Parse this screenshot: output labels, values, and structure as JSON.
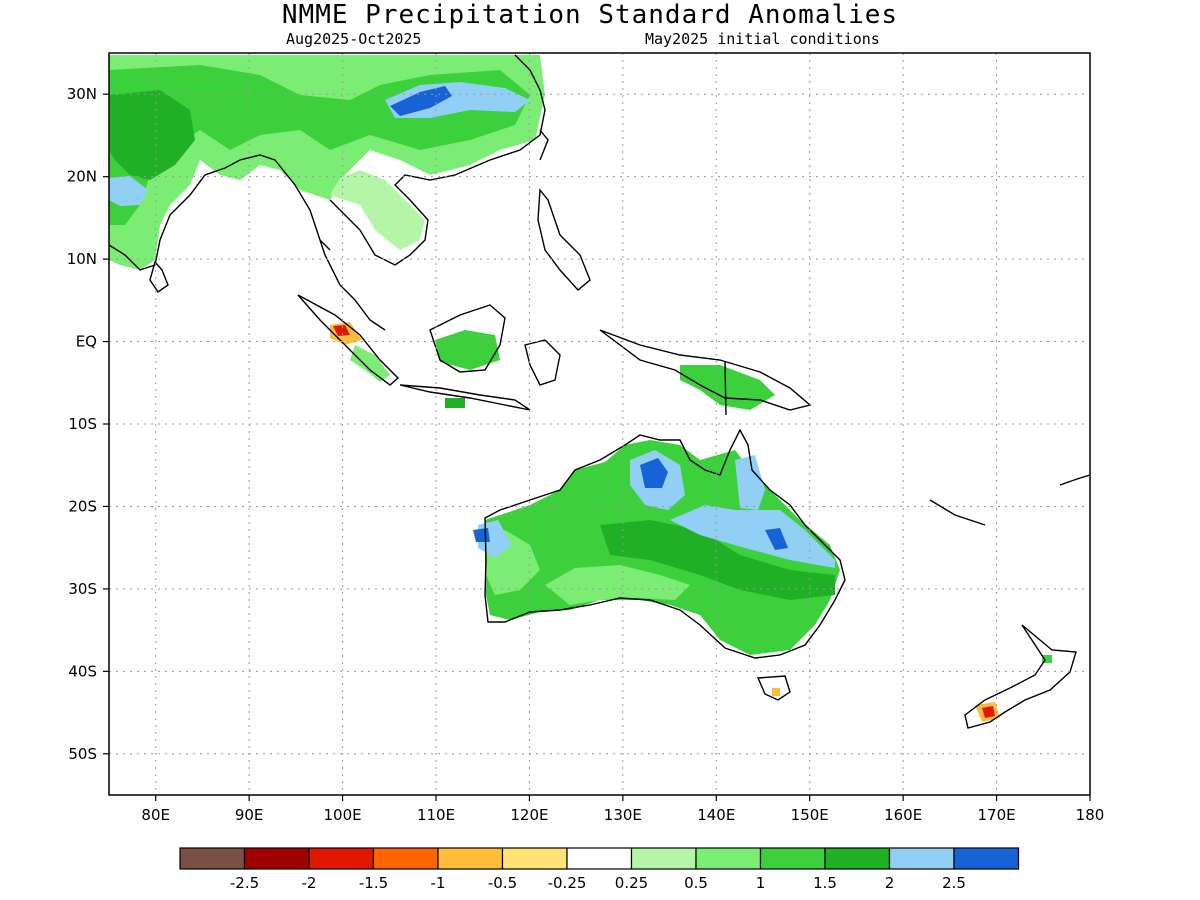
{
  "header": {
    "title": "NMME Precipitation Standard Anomalies",
    "period": "Aug2025-Oct2025",
    "init": "May2025 initial conditions"
  },
  "map": {
    "lon_range": [
      75,
      180
    ],
    "lat_range": [
      -55,
      35
    ],
    "lat_ticks": [
      {
        "lat": 30,
        "label": "30N"
      },
      {
        "lat": 20,
        "label": "20N"
      },
      {
        "lat": 10,
        "label": "10N"
      },
      {
        "lat": 0,
        "label": "EQ"
      },
      {
        "lat": -10,
        "label": "10S"
      },
      {
        "lat": -20,
        "label": "20S"
      },
      {
        "lat": -30,
        "label": "30S"
      },
      {
        "lat": -40,
        "label": "40S"
      },
      {
        "lat": -50,
        "label": "50S"
      }
    ],
    "lon_ticks": [
      {
        "lon": 80,
        "label": "80E"
      },
      {
        "lon": 90,
        "label": "90E"
      },
      {
        "lon": 100,
        "label": "100E"
      },
      {
        "lon": 110,
        "label": "110E"
      },
      {
        "lon": 120,
        "label": "120E"
      },
      {
        "lon": 130,
        "label": "130E"
      },
      {
        "lon": 140,
        "label": "140E"
      },
      {
        "lon": 150,
        "label": "150E"
      },
      {
        "lon": 160,
        "label": "160E"
      },
      {
        "lon": 170,
        "label": "170E"
      },
      {
        "lon": 180,
        "label": "180"
      }
    ],
    "grid": true,
    "colors": {
      "green_light": "#b4f5a8",
      "green_mid": "#7ced74",
      "green": "#3cd13c",
      "green_dark": "#20b026",
      "blue_light": "#92cff5",
      "blue": "#1663d6",
      "yellow": "#ffe475",
      "orange_light": "#ffbe3a",
      "orange": "#ff6400",
      "red": "#e01800"
    }
  },
  "legend": {
    "colors": [
      "#7b5044",
      "#a10000",
      "#e01800",
      "#ff6400",
      "#ffbe3a",
      "#ffe475",
      "#ffffff",
      "#b4f5a8",
      "#7ced74",
      "#3cd13c",
      "#20b026",
      "#92cff5",
      "#1663d6"
    ],
    "labels": [
      "-2.5",
      "-2",
      "-1.5",
      "-1",
      "-0.5",
      "-0.25",
      "0.25",
      "0.5",
      "1",
      "1.5",
      "2",
      "2.5"
    ]
  }
}
